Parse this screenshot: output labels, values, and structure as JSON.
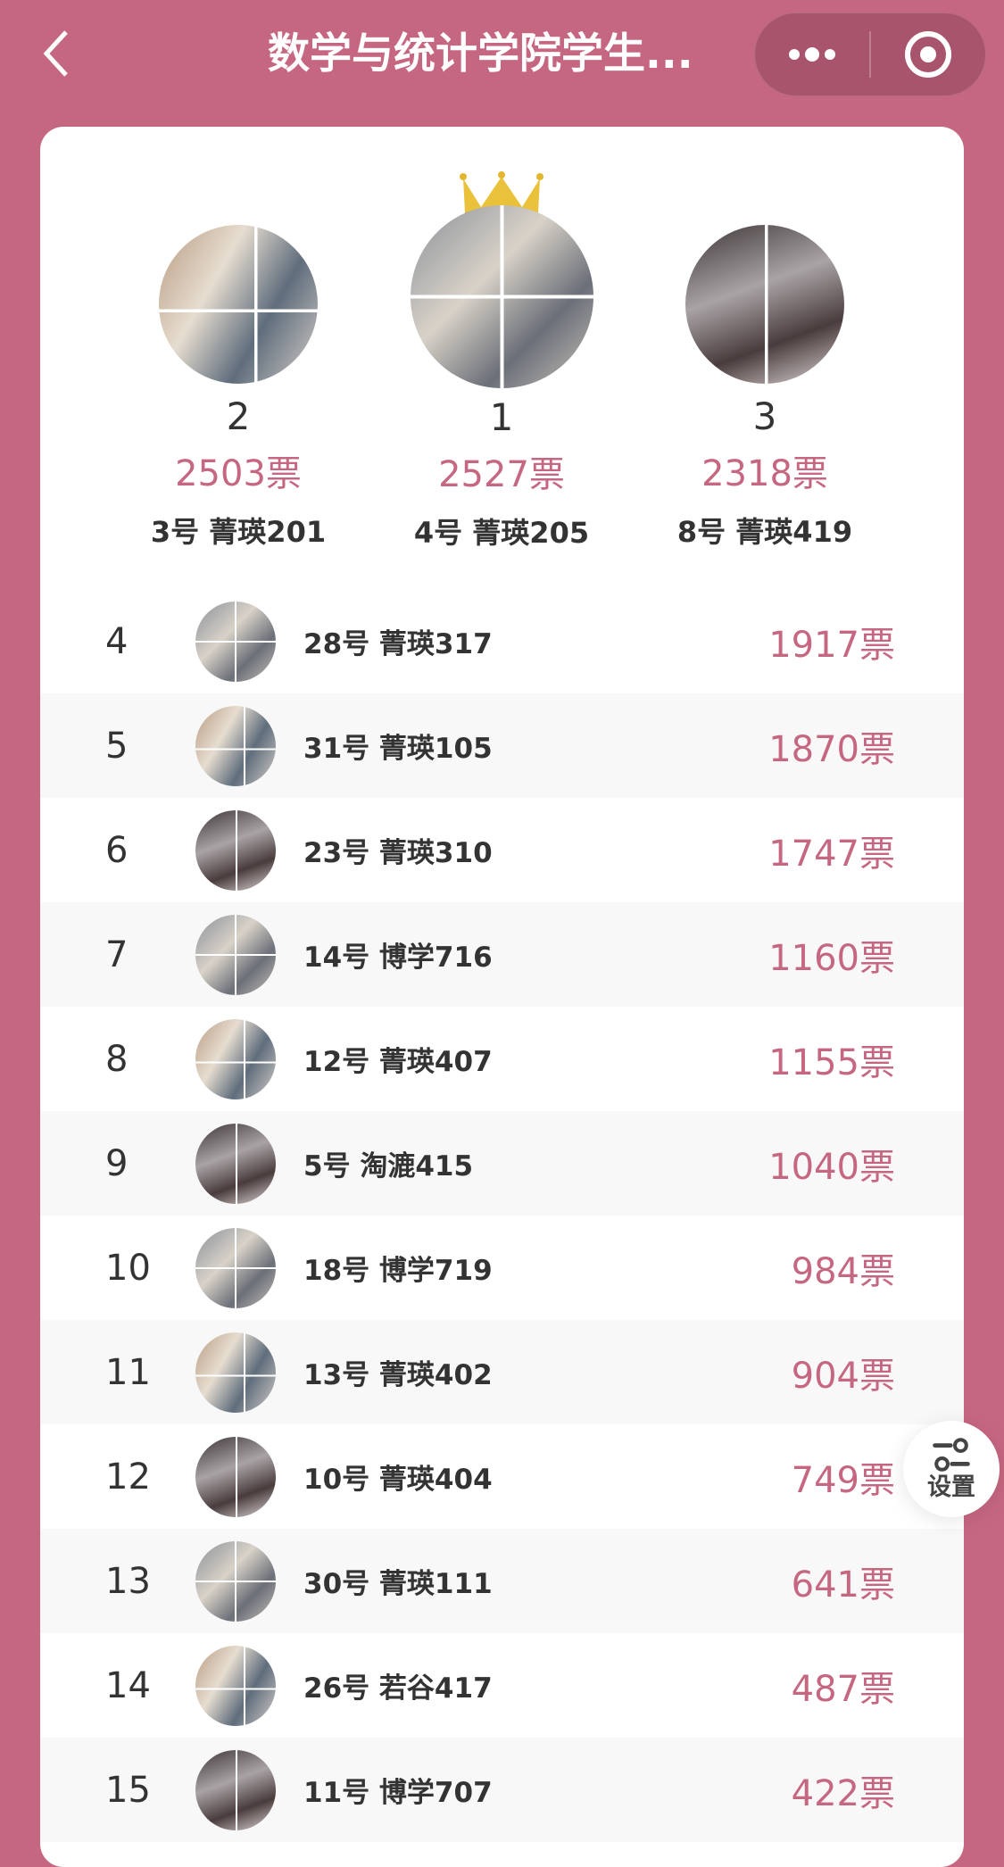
{
  "nav": {
    "title": "数学与统计学院学生...",
    "back_icon": "chevron-left-icon",
    "more_icon": "more-dots-icon",
    "close_icon": "target-icon"
  },
  "colors": {
    "background": "#c66781",
    "accent": "#c66781",
    "capsule": "#a9546d"
  },
  "podium": [
    {
      "rank": "2",
      "votes": "2503票",
      "name": "3号 菁瑛201"
    },
    {
      "rank": "1",
      "votes": "2527票",
      "name": "4号 菁瑛205",
      "crown": true
    },
    {
      "rank": "3",
      "votes": "2318票",
      "name": "8号 菁瑛419"
    }
  ],
  "list": [
    {
      "rank": "4",
      "name": "28号 菁瑛317",
      "votes": "1917票"
    },
    {
      "rank": "5",
      "name": "31号 菁瑛105",
      "votes": "1870票"
    },
    {
      "rank": "6",
      "name": "23号 菁瑛310",
      "votes": "1747票"
    },
    {
      "rank": "7",
      "name": "14号 博学716",
      "votes": "1160票"
    },
    {
      "rank": "8",
      "name": "12号 菁瑛407",
      "votes": "1155票"
    },
    {
      "rank": "9",
      "name": "5号 淘漉415",
      "votes": "1040票"
    },
    {
      "rank": "10",
      "name": "18号 博学719",
      "votes": "984票"
    },
    {
      "rank": "11",
      "name": "13号 菁瑛402",
      "votes": "904票"
    },
    {
      "rank": "12",
      "name": "10号 菁瑛404",
      "votes": "749票"
    },
    {
      "rank": "13",
      "name": "30号 菁瑛111",
      "votes": "641票"
    },
    {
      "rank": "14",
      "name": "26号 若谷417",
      "votes": "487票"
    },
    {
      "rank": "15",
      "name": "11号 博学707",
      "votes": "422票"
    }
  ],
  "settings": {
    "label": "设置",
    "icon": "sliders-icon"
  }
}
